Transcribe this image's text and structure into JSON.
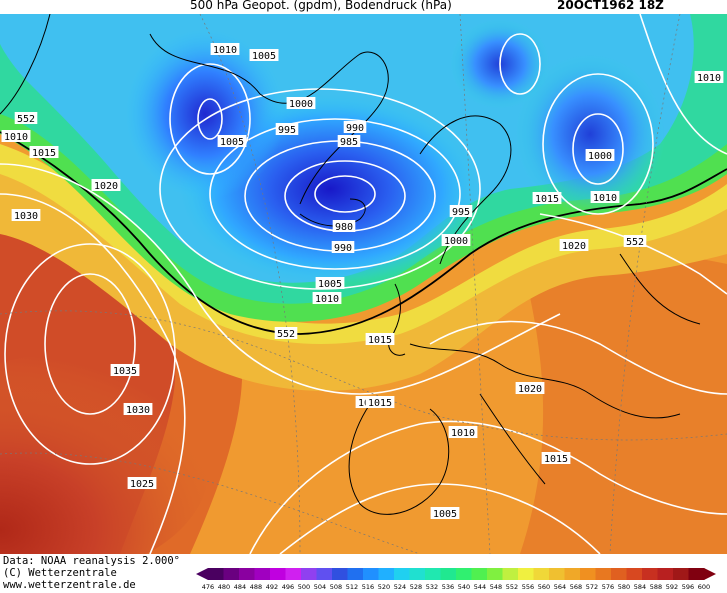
{
  "header": {
    "title": "500 hPa Geopot. (gpdm), Bodendruck (hPa)",
    "date": "20OCT1962 18Z"
  },
  "map": {
    "isobar_labels": [
      "1010",
      "1005",
      "1010",
      "1020",
      "1005",
      "1000",
      "995",
      "990",
      "985",
      "1005",
      "980",
      "990",
      "1015",
      "995",
      "1015",
      "1010",
      "1000",
      "1005",
      "1010",
      "1015",
      "1020",
      "1015",
      "1020",
      "1035",
      "1030",
      "1015",
      "1010",
      "1015",
      "1025",
      "1005",
      "1010",
      "1015",
      "1020",
      "1030",
      "1010",
      "1000"
    ],
    "geopotential_labels": [
      "552",
      "552",
      "552"
    ],
    "colors": {
      "deep_low": "#2020d0",
      "low": "#3aa0ff",
      "mid": "#28d7b8",
      "green": "#4ee65a",
      "yellow": "#f0e040",
      "orange": "#f0a030",
      "dark_orange": "#e06a28",
      "red": "#c83c2a",
      "isobar": "#ffffff",
      "coast": "#000000"
    }
  },
  "footer": {
    "data_source": "Data: NOAA reanalysis 2.000°",
    "copyright": "(C) Wetterzentrale",
    "website": "www.wetterzentrale.de"
  },
  "legend": {
    "ticks": [
      "476",
      "480",
      "484",
      "488",
      "492",
      "496",
      "500",
      "504",
      "508",
      "512",
      "516",
      "520",
      "524",
      "528",
      "532",
      "536",
      "540",
      "544",
      "548",
      "552",
      "556",
      "560",
      "564",
      "568",
      "572",
      "576",
      "580",
      "584",
      "588",
      "592",
      "596",
      "600"
    ],
    "colors": [
      "#4a0060",
      "#6a0080",
      "#8a00a0",
      "#a000c0",
      "#c000e0",
      "#d020f0",
      "#9040f0",
      "#6050f0",
      "#3050e0",
      "#2070f0",
      "#2090ff",
      "#20b0ff",
      "#20d0f0",
      "#20e0d0",
      "#20e8b0",
      "#20e890",
      "#30f070",
      "#50f050",
      "#80f040",
      "#c0f040",
      "#f0f040",
      "#f0d838",
      "#f0c030",
      "#f0a828",
      "#f09020",
      "#e87820",
      "#e06020",
      "#d84820",
      "#c83020",
      "#b82020",
      "#a01818",
      "#800010"
    ]
  }
}
